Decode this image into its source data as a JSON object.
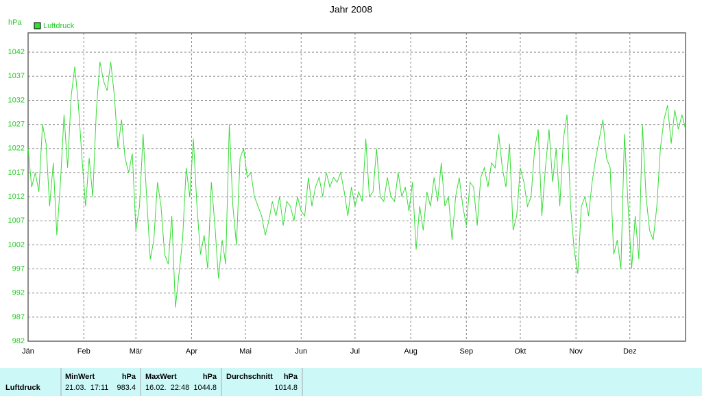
{
  "chart_data": {
    "type": "line",
    "title": "Jahr 2008",
    "y_label": "hPa",
    "xlim": [
      0,
      366
    ],
    "xticks": [
      {
        "value": 0,
        "label": "Jän"
      },
      {
        "value": 31,
        "label": "Feb"
      },
      {
        "value": 60,
        "label": "Mär"
      },
      {
        "value": 91,
        "label": "Apr"
      },
      {
        "value": 121,
        "label": "Mai"
      },
      {
        "value": 152,
        "label": "Jun"
      },
      {
        "value": 182,
        "label": "Jul"
      },
      {
        "value": 213,
        "label": "Aug"
      },
      {
        "value": 244,
        "label": "Sep"
      },
      {
        "value": 274,
        "label": "Okt"
      },
      {
        "value": 305,
        "label": "Nov"
      },
      {
        "value": 335,
        "label": "Dez"
      }
    ],
    "ylim": [
      982,
      1046
    ],
    "yticks": [
      982,
      987,
      992,
      997,
      1002,
      1007,
      1012,
      1017,
      1022,
      1027,
      1032,
      1037,
      1042
    ],
    "grid": true,
    "legend": "top-left",
    "series": [
      {
        "name": "Luftdruck",
        "color": "#33dd33",
        "x": [
          0,
          2,
          4,
          6,
          8,
          10,
          12,
          14,
          16,
          18,
          20,
          22,
          24,
          26,
          28,
          30,
          32,
          34,
          36,
          38,
          40,
          42,
          44,
          46,
          48,
          50,
          52,
          54,
          56,
          58,
          60,
          62,
          64,
          66,
          68,
          70,
          72,
          74,
          76,
          78,
          80,
          82,
          84,
          86,
          88,
          90,
          92,
          94,
          96,
          98,
          100,
          102,
          104,
          106,
          108,
          110,
          112,
          114,
          116,
          118,
          120,
          122,
          124,
          126,
          128,
          130,
          132,
          134,
          136,
          138,
          140,
          142,
          144,
          146,
          148,
          150,
          152,
          154,
          156,
          158,
          160,
          162,
          164,
          166,
          168,
          170,
          172,
          174,
          176,
          178,
          180,
          182,
          184,
          186,
          188,
          190,
          192,
          194,
          196,
          198,
          200,
          202,
          204,
          206,
          208,
          210,
          212,
          214,
          216,
          218,
          220,
          222,
          224,
          226,
          228,
          230,
          232,
          234,
          236,
          238,
          240,
          242,
          244,
          246,
          248,
          250,
          252,
          254,
          256,
          258,
          260,
          262,
          264,
          266,
          268,
          270,
          272,
          274,
          276,
          278,
          280,
          282,
          284,
          286,
          288,
          290,
          292,
          294,
          296,
          298,
          300,
          302,
          304,
          306,
          308,
          310,
          312,
          314,
          316,
          318,
          320,
          322,
          324,
          326,
          328,
          330,
          332,
          334,
          336,
          338,
          340,
          342,
          344,
          346,
          348,
          350,
          352,
          354,
          356,
          358,
          360,
          362,
          364,
          366
        ],
        "values": [
          1022,
          1014,
          1017,
          1013,
          1027,
          1023,
          1010,
          1019,
          1004,
          1015,
          1029,
          1018,
          1033,
          1039,
          1031,
          1020,
          1010,
          1020,
          1012,
          1030,
          1040,
          1036,
          1034,
          1040,
          1033,
          1022,
          1028,
          1020,
          1017,
          1021,
          1005,
          1010,
          1025,
          1012,
          999,
          1003,
          1015,
          1010,
          1000,
          998,
          1008,
          989,
          996,
          1003,
          1018,
          1012,
          1024,
          1010,
          1000,
          1004,
          997,
          1015,
          1006,
          995,
          1003,
          998,
          1027,
          1010,
          1002,
          1020,
          1022,
          1016,
          1017,
          1012,
          1010,
          1008,
          1004,
          1007,
          1011,
          1008,
          1012,
          1006,
          1011,
          1010,
          1007,
          1012,
          1009,
          1008,
          1016,
          1010,
          1014,
          1016,
          1012,
          1017,
          1014,
          1016,
          1015,
          1017,
          1013,
          1008,
          1014,
          1010,
          1013,
          1011,
          1024,
          1012,
          1013,
          1022,
          1012,
          1011,
          1016,
          1012,
          1011,
          1017,
          1012,
          1014,
          1009,
          1015,
          1001,
          1010,
          1005,
          1013,
          1010,
          1016,
          1011,
          1019,
          1010,
          1012,
          1003,
          1012,
          1016,
          1010,
          1006,
          1015,
          1014,
          1006,
          1016,
          1018,
          1014,
          1019,
          1018,
          1025,
          1018,
          1014,
          1023,
          1005,
          1008,
          1018,
          1015,
          1010,
          1012,
          1022,
          1026,
          1008,
          1018,
          1026,
          1015,
          1022,
          1010,
          1024,
          1029,
          1010,
          1001,
          996,
          1010,
          1012,
          1008,
          1015,
          1020,
          1024,
          1028,
          1020,
          1018,
          1000,
          1003,
          997,
          1025,
          1010,
          997,
          1008,
          999,
          1027,
          1012,
          1005,
          1003,
          1010,
          1022,
          1028,
          1031,
          1023,
          1030,
          1026,
          1029,
          1026
        ]
      }
    ]
  },
  "table": {
    "row_label": "Luftdruck",
    "columns": [
      {
        "header": "MinWert",
        "unit": "hPa",
        "date": "21.03.  17:11",
        "value": 983.4
      },
      {
        "header": "MaxWert",
        "unit": "hPa",
        "date": "16.02.  22:48",
        "value": 1044.8
      },
      {
        "header": "Durchschnitt",
        "unit": "hPa",
        "value": 1014.8
      }
    ]
  }
}
